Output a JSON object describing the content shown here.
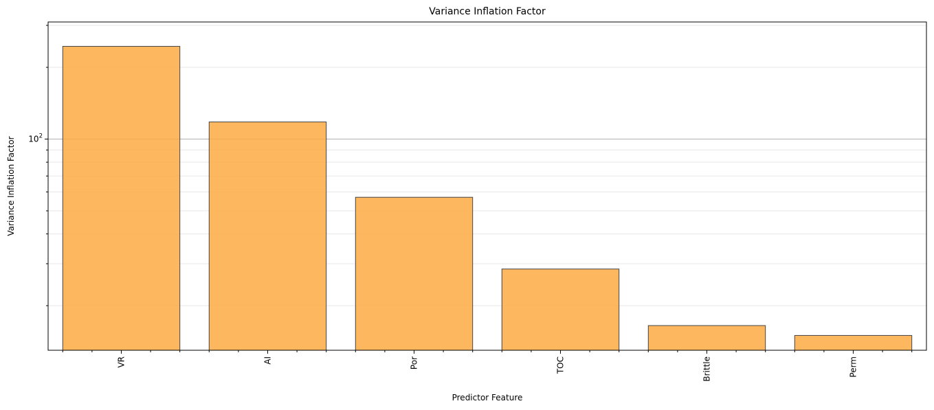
{
  "chart_data": {
    "type": "bar",
    "title": "Variance Inflation Factor",
    "xlabel": "Predictor Feature",
    "ylabel": "Variance Inflation Factor",
    "yscale": "log",
    "categories": [
      "VR",
      "AI",
      "Por",
      "TOC",
      "Brittle",
      "Perm"
    ],
    "values": [
      245,
      118,
      57,
      28.5,
      16.5,
      15
    ],
    "ylim": [
      13.0,
      310
    ],
    "major_tick_label": {
      "base": "10",
      "exponent": "2"
    },
    "grid": true,
    "bar_color": "#fdaa42",
    "bar_edge_color": "#444444",
    "grid_color": "#b0b0b0"
  }
}
